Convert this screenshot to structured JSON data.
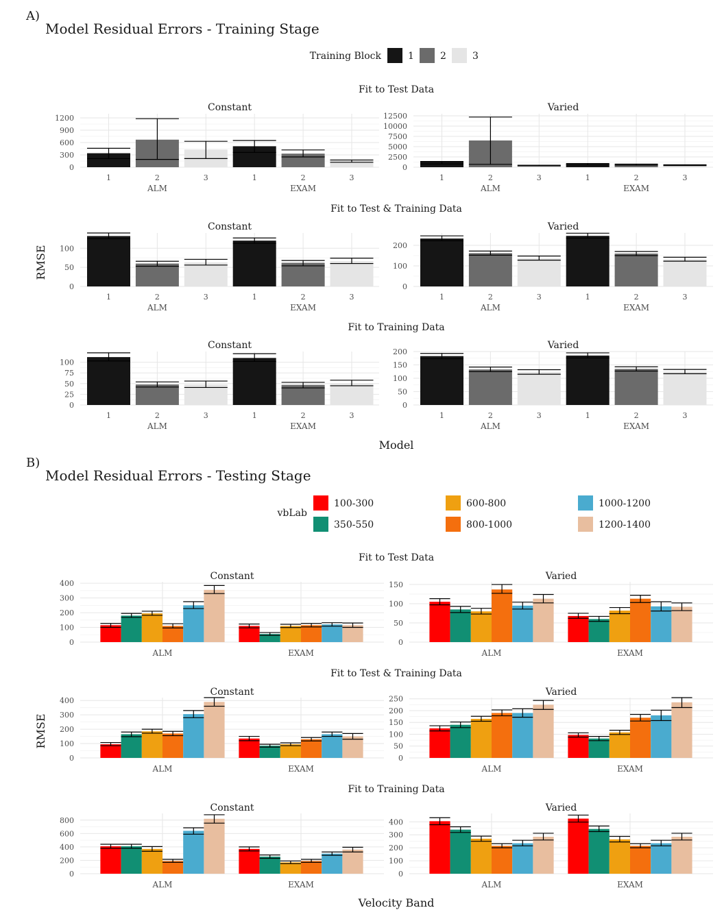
{
  "panel_labels": [
    "A)",
    "B)"
  ],
  "chart_data": [
    {
      "type": "bar",
      "title": "Model Residual Errors - Training Stage",
      "xlabel": "Model",
      "ylabel": "RMSE",
      "legend": {
        "title": "Training Block",
        "position": "top",
        "entries": [
          "1",
          "2",
          "3"
        ],
        "colors": [
          "#151515",
          "#6b6b6b",
          "#e5e5e5"
        ]
      },
      "facet_rows": [
        "Fit to Test Data",
        "Fit to Test & Training Data",
        "Fit to Training Data"
      ],
      "facet_cols": [
        "Constant",
        "Varied"
      ],
      "groups": [
        "ALM",
        "EXAM"
      ],
      "categories": [
        "1",
        "2",
        "3"
      ],
      "grid": true,
      "panels": [
        {
          "row": "Fit to Test Data",
          "col": "Constant",
          "ylim": [
            0,
            1300
          ],
          "ticks": [
            0,
            300,
            600,
            900,
            1200
          ],
          "values": [
            [
              340,
              670,
              430
            ],
            [
              510,
              330,
              150
            ]
          ],
          "err": [
            [
              [
                210,
                460
              ],
              [
                190,
                1180
              ],
              [
                210,
                630
              ]
            ],
            [
              [
                360,
                650
              ],
              [
                250,
                420
              ],
              [
                120,
                175
              ]
            ]
          ]
        },
        {
          "row": "Fit to Test Data",
          "col": "Varied",
          "ylim": [
            0,
            13000
          ],
          "ticks": [
            0,
            2500,
            5000,
            7500,
            10000,
            12500
          ],
          "values": [
            [
              1350,
              6500,
              400
            ],
            [
              800,
              650,
              500
            ]
          ],
          "err": [
            [
              [
                800,
                1400
              ],
              [
                700,
                12200
              ],
              [
                300,
                480
              ]
            ],
            [
              [
                600,
                900
              ],
              [
                500,
                750
              ],
              [
                400,
                580
              ]
            ]
          ]
        },
        {
          "row": "Fit to Test & Training Data",
          "col": "Constant",
          "ylim": [
            0,
            140
          ],
          "ticks": [
            0,
            50,
            100
          ],
          "values": [
            [
              132,
              60,
              63
            ],
            [
              120,
              62,
              66
            ]
          ],
          "err": [
            [
              [
                125,
                140
              ],
              [
                53,
                66
              ],
              [
                56,
                71
              ]
            ],
            [
              [
                113,
                127
              ],
              [
                54,
                68
              ],
              [
                60,
                74
              ]
            ]
          ]
        },
        {
          "row": "Fit to Test & Training Data",
          "col": "Varied",
          "ylim": [
            0,
            260
          ],
          "ticks": [
            0,
            100,
            200
          ],
          "values": [
            [
              233,
              162,
              138
            ],
            [
              246,
              160,
              132
            ]
          ],
          "err": [
            [
              [
                222,
                246
              ],
              [
                152,
                172
              ],
              [
                128,
                148
              ]
            ],
            [
              [
                235,
                259
              ],
              [
                150,
                170
              ],
              [
                123,
                142
              ]
            ]
          ]
        },
        {
          "row": "Fit to Training Data",
          "col": "Constant",
          "ylim": [
            0,
            125
          ],
          "ticks": [
            0,
            25,
            50,
            75,
            100
          ],
          "values": [
            [
              112,
              48,
              48
            ],
            [
              110,
              47,
              51
            ]
          ],
          "err": [
            [
              [
                103,
                122
              ],
              [
                42,
                54
              ],
              [
                41,
                56
              ]
            ],
            [
              [
                102,
                120
              ],
              [
                40,
                53
              ],
              [
                45,
                58
              ]
            ]
          ]
        },
        {
          "row": "Fit to Training Data",
          "col": "Varied",
          "ylim": [
            0,
            200
          ],
          "ticks": [
            0,
            50,
            100,
            150,
            200
          ],
          "values": [
            [
              183,
              133,
              123
            ],
            [
              185,
              135,
              125
            ]
          ],
          "err": [
            [
              [
                173,
                193
              ],
              [
                125,
                142
              ],
              [
                115,
                132
              ]
            ],
            [
              [
                176,
                195
              ],
              [
                127,
                143
              ],
              [
                117,
                133
              ]
            ]
          ]
        }
      ]
    },
    {
      "type": "bar",
      "title": "Model Residual Errors - Testing Stage",
      "xlabel": "Velocity Band",
      "ylabel": "RMSE",
      "legend": {
        "title": "vbLab",
        "position": "top",
        "entries": [
          "100-300",
          "350-550",
          "600-800",
          "800-1000",
          "1000-1200",
          "1200-1400"
        ],
        "colors": [
          "#ff0000",
          "#118f73",
          "#efa011",
          "#f46f0e",
          "#4aabcf",
          "#e8be9f"
        ]
      },
      "facet_rows": [
        "Fit to Test Data",
        "Fit to Test & Training Data",
        "Fit to Training Data"
      ],
      "facet_cols": [
        "Constant",
        "Varied"
      ],
      "categories": [
        "ALM",
        "EXAM"
      ],
      "grid": true,
      "panels": [
        {
          "row": "Fit to Test Data",
          "col": "Constant",
          "ylim": [
            0,
            410
          ],
          "ticks": [
            0,
            100,
            200,
            300,
            400
          ],
          "values": [
            [
              115,
              180,
              195,
              110,
              250,
              355
            ],
            [
              110,
              55,
              110,
              115,
              120,
              115
            ]
          ],
          "err": [
            [
              [
                100,
                127
              ],
              [
                168,
                195
              ],
              [
                182,
                210
              ],
              [
                96,
                125
              ],
              [
                228,
                275
              ],
              [
                330,
                385
              ]
            ],
            [
              [
                97,
                123
              ],
              [
                46,
                65
              ],
              [
                99,
                121
              ],
              [
                103,
                127
              ],
              [
                108,
                132
              ],
              [
                100,
                130
              ]
            ]
          ]
        },
        {
          "row": "Fit to Test Data",
          "col": "Varied",
          "ylim": [
            0,
            157
          ],
          "ticks": [
            0,
            50,
            100,
            150
          ],
          "values": [
            [
              105,
              85,
              80,
              137,
              95,
              113
            ],
            [
              68,
              60,
              82,
              113,
              93,
              92
            ]
          ],
          "err": [
            [
              [
                97,
                113
              ],
              [
                77,
                93
              ],
              [
                73,
                88
              ],
              [
                127,
                150
              ],
              [
                86,
                104
              ],
              [
                102,
                124
              ]
            ],
            [
              [
                62,
                75
              ],
              [
                54,
                67
              ],
              [
                74,
                90
              ],
              [
                103,
                122
              ],
              [
                81,
                105
              ],
              [
                82,
                102
              ]
            ]
          ]
        },
        {
          "row": "Fit to Test & Training Data",
          "col": "Constant",
          "ylim": [
            0,
            420
          ],
          "ticks": [
            0,
            100,
            200,
            300,
            400
          ],
          "values": [
            [
              95,
              165,
              185,
              170,
              305,
              390
            ],
            [
              135,
              85,
              95,
              130,
              165,
              150
            ]
          ],
          "err": [
            [
              [
                85,
                107
              ],
              [
                148,
                180
              ],
              [
                172,
                200
              ],
              [
                155,
                185
              ],
              [
                280,
                330
              ],
              [
                360,
                420
              ]
            ],
            [
              [
                120,
                150
              ],
              [
                75,
                95
              ],
              [
                85,
                105
              ],
              [
                118,
                142
              ],
              [
                150,
                180
              ],
              [
                130,
                170
              ]
            ]
          ]
        },
        {
          "row": "Fit to Test & Training Data",
          "col": "Varied",
          "ylim": [
            0,
            255
          ],
          "ticks": [
            0,
            50,
            100,
            150,
            200,
            250
          ],
          "values": [
            [
              125,
              140,
              165,
              190,
              190,
              225
            ],
            [
              97,
              82,
              108,
              170,
              180,
              235
            ]
          ],
          "err": [
            [
              [
                114,
                136
              ],
              [
                128,
                152
              ],
              [
                155,
                176
              ],
              [
                178,
                203
              ],
              [
                172,
                208
              ],
              [
                205,
                243
              ]
            ],
            [
              [
                88,
                106
              ],
              [
                73,
                91
              ],
              [
                99,
                117
              ],
              [
                156,
                184
              ],
              [
                158,
                202
              ],
              [
                213,
                255
              ]
            ]
          ]
        },
        {
          "row": "Fit to Training Data",
          "col": "Constant",
          "ylim": [
            0,
            900
          ],
          "ticks": [
            0,
            200,
            400,
            600,
            800
          ],
          "values": [
            [
              410,
              410,
              370,
              190,
              640,
              820
            ],
            [
              370,
              255,
              170,
              190,
              300,
              360
            ]
          ],
          "err": [
            [
              [
                380,
                440
              ],
              [
                380,
                440
              ],
              [
                335,
                405
              ],
              [
                170,
                215
              ],
              [
                590,
                685
              ],
              [
                755,
                880
              ]
            ],
            [
              [
                340,
                400
              ],
              [
                230,
                280
              ],
              [
                150,
                190
              ],
              [
                170,
                215
              ],
              [
                275,
                325
              ],
              [
                325,
                395
              ]
            ]
          ]
        },
        {
          "row": "Fit to Training Data",
          "col": "Varied",
          "ylim": [
            0,
            465
          ],
          "ticks": [
            0,
            100,
            200,
            300,
            400
          ],
          "values": [
            [
              405,
              340,
              270,
              215,
              235,
              285
            ],
            [
              425,
              345,
              265,
              215,
              235,
              285
            ]
          ],
          "err": [
            [
              [
                378,
                432
              ],
              [
                318,
                362
              ],
              [
                250,
                290
              ],
              [
                200,
                232
              ],
              [
                215,
                258
              ],
              [
                260,
                312
              ]
            ],
            [
              [
                398,
                452
              ],
              [
                325,
                368
              ],
              [
                245,
                288
              ],
              [
                200,
                232
              ],
              [
                215,
                258
              ],
              [
                260,
                312
              ]
            ]
          ]
        }
      ]
    }
  ]
}
